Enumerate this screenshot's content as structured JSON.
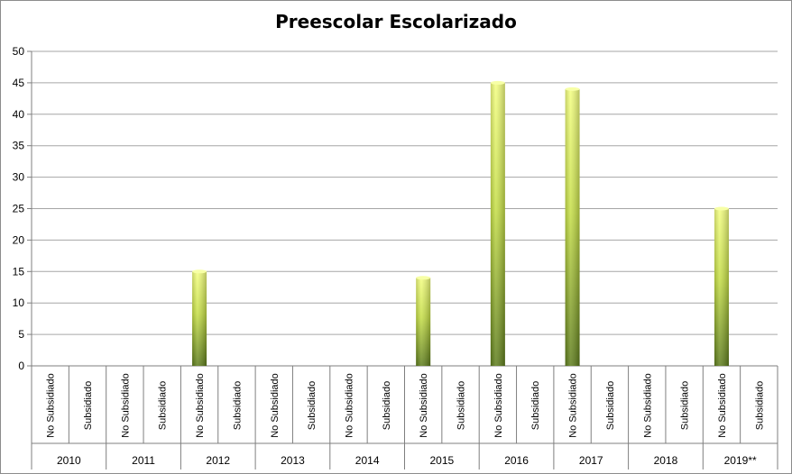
{
  "chart_data": {
    "type": "bar",
    "title": "Preescolar Escolarizado",
    "ylim": [
      0,
      50
    ],
    "yticks": [
      0,
      5,
      10,
      15,
      20,
      25,
      30,
      35,
      40,
      45,
      50
    ],
    "grid": true,
    "legend": "none",
    "groups": [
      "2010",
      "2011",
      "2012",
      "2013",
      "2014",
      "2015",
      "2016",
      "2017",
      "2018",
      "2019**"
    ],
    "subcategories": [
      "No Subsidiado",
      "Subsidiado"
    ],
    "series": [
      {
        "values": [
          [
            0,
            0
          ],
          [
            0,
            0
          ],
          [
            15,
            0
          ],
          [
            0,
            0
          ],
          [
            0,
            0
          ],
          [
            14,
            0
          ],
          [
            45,
            0
          ],
          [
            44,
            0
          ],
          [
            0,
            0
          ],
          [
            25,
            0
          ]
        ]
      }
    ],
    "colors": {
      "bar_top": "#f2ff7a",
      "bar_mid": "#c8e04a",
      "bar_bottom": "#5e7d1c",
      "grid": "#a6a6a6",
      "axis": "#7f7f7f"
    }
  }
}
